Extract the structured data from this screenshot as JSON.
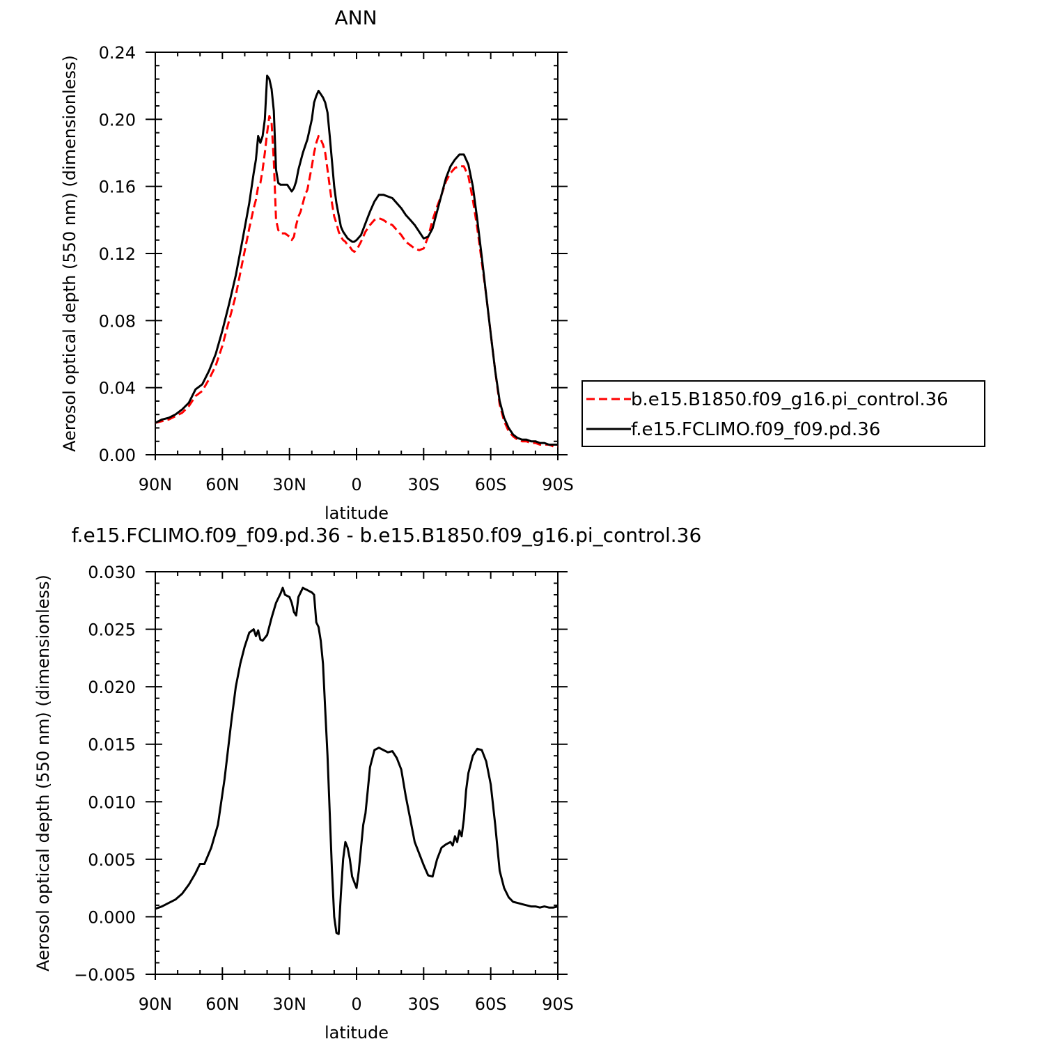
{
  "chart_data": [
    {
      "type": "line",
      "title": "ANN",
      "xlabel": "latitude",
      "ylabel": "Aerosol optical depth (550 nm) (dimensionless)",
      "xlim": [
        90,
        -90
      ],
      "ylim": [
        0.0,
        0.24
      ],
      "x_ticks": [
        90,
        60,
        30,
        0,
        -30,
        -60,
        -90
      ],
      "x_tick_labels": [
        "90N",
        "60N",
        "30N",
        "0",
        "30S",
        "60S",
        "90S"
      ],
      "y_ticks": [
        0.0,
        0.04,
        0.08,
        0.12,
        0.16,
        0.2,
        0.24
      ],
      "y_tick_labels": [
        "0.00",
        "0.04",
        "0.08",
        "0.12",
        "0.16",
        "0.20",
        "0.24"
      ],
      "grid": false,
      "legend_position": "right",
      "series": [
        {
          "name": "b.e15.B1850.f09_g16.pi_control.36",
          "color": "#ff0000",
          "style": "dashed",
          "x": [
            90,
            87,
            84,
            81,
            78,
            75,
            72,
            69,
            66,
            63,
            60,
            57,
            54,
            51,
            48,
            46,
            45,
            44,
            43,
            42,
            41,
            40,
            39,
            38,
            37,
            36,
            35,
            34,
            33,
            32,
            31,
            30,
            29,
            28,
            27,
            26,
            25,
            24,
            23,
            22,
            21,
            20,
            19,
            18,
            17,
            16,
            15,
            14,
            13,
            12,
            11,
            10,
            9,
            8,
            7,
            6,
            5,
            4,
            3,
            2,
            1,
            0,
            -2,
            -4,
            -6,
            -8,
            -10,
            -12,
            -14,
            -16,
            -18,
            -20,
            -22,
            -24,
            -26,
            -28,
            -30,
            -32,
            -34,
            -36,
            -38,
            -40,
            -42,
            -44,
            -46,
            -48,
            -50,
            -52,
            -54,
            -56,
            -58,
            -60,
            -62,
            -64,
            -66,
            -68,
            -70,
            -72,
            -74,
            -76,
            -78,
            -80,
            -82,
            -84,
            -86,
            -88,
            -90
          ],
          "y": [
            0.019,
            0.02,
            0.021,
            0.023,
            0.025,
            0.029,
            0.035,
            0.038,
            0.045,
            0.053,
            0.065,
            0.08,
            0.095,
            0.115,
            0.135,
            0.147,
            0.152,
            0.16,
            0.162,
            0.17,
            0.18,
            0.192,
            0.202,
            0.198,
            0.175,
            0.14,
            0.134,
            0.132,
            0.132,
            0.132,
            0.131,
            0.13,
            0.128,
            0.13,
            0.137,
            0.142,
            0.145,
            0.15,
            0.155,
            0.158,
            0.165,
            0.172,
            0.18,
            0.186,
            0.19,
            0.188,
            0.185,
            0.18,
            0.17,
            0.16,
            0.15,
            0.142,
            0.138,
            0.133,
            0.13,
            0.128,
            0.127,
            0.125,
            0.124,
            0.122,
            0.121,
            0.122,
            0.127,
            0.133,
            0.137,
            0.14,
            0.141,
            0.14,
            0.138,
            0.137,
            0.134,
            0.131,
            0.127,
            0.125,
            0.123,
            0.122,
            0.123,
            0.13,
            0.14,
            0.148,
            0.155,
            0.163,
            0.168,
            0.171,
            0.172,
            0.172,
            0.166,
            0.152,
            0.135,
            0.115,
            0.095,
            0.072,
            0.05,
            0.03,
            0.02,
            0.014,
            0.011,
            0.009,
            0.008,
            0.008,
            0.007,
            0.007,
            0.006,
            0.006,
            0.006,
            0.005,
            0.005
          ]
        },
        {
          "name": "f.e15.FCLIMO.f09_f09.pd.36",
          "color": "#000000",
          "style": "solid",
          "x": [
            90,
            87,
            84,
            81,
            78,
            75,
            72,
            69,
            66,
            63,
            60,
            57,
            54,
            51,
            48,
            46,
            45,
            44,
            43,
            42,
            41,
            40,
            39,
            38,
            37,
            36,
            35,
            34,
            33,
            32,
            31,
            30,
            29,
            28,
            27,
            26,
            25,
            24,
            23,
            22,
            21,
            20,
            19,
            18,
            17,
            16,
            15,
            14,
            13,
            12,
            11,
            10,
            9,
            8,
            7,
            6,
            5,
            4,
            3,
            2,
            1,
            0,
            -2,
            -4,
            -6,
            -8,
            -10,
            -12,
            -14,
            -16,
            -18,
            -20,
            -22,
            -24,
            -26,
            -28,
            -30,
            -32,
            -34,
            -36,
            -38,
            -40,
            -42,
            -44,
            -46,
            -48,
            -50,
            -52,
            -54,
            -56,
            -58,
            -60,
            -62,
            -64,
            -66,
            -68,
            -70,
            -72,
            -74,
            -76,
            -78,
            -80,
            -82,
            -84,
            -86,
            -88,
            -90
          ],
          "y": [
            0.019,
            0.021,
            0.022,
            0.024,
            0.027,
            0.031,
            0.039,
            0.042,
            0.05,
            0.06,
            0.074,
            0.09,
            0.107,
            0.128,
            0.15,
            0.168,
            0.176,
            0.19,
            0.186,
            0.19,
            0.2,
            0.226,
            0.224,
            0.218,
            0.205,
            0.17,
            0.162,
            0.161,
            0.161,
            0.161,
            0.161,
            0.159,
            0.157,
            0.159,
            0.163,
            0.17,
            0.175,
            0.18,
            0.184,
            0.188,
            0.194,
            0.2,
            0.21,
            0.214,
            0.217,
            0.215,
            0.213,
            0.21,
            0.204,
            0.19,
            0.175,
            0.16,
            0.15,
            0.143,
            0.136,
            0.133,
            0.131,
            0.129,
            0.128,
            0.127,
            0.127,
            0.128,
            0.131,
            0.138,
            0.145,
            0.151,
            0.155,
            0.155,
            0.154,
            0.153,
            0.15,
            0.147,
            0.143,
            0.14,
            0.137,
            0.133,
            0.129,
            0.13,
            0.135,
            0.145,
            0.155,
            0.165,
            0.172,
            0.176,
            0.179,
            0.179,
            0.173,
            0.16,
            0.14,
            0.118,
            0.095,
            0.072,
            0.05,
            0.032,
            0.022,
            0.016,
            0.012,
            0.01,
            0.009,
            0.009,
            0.008,
            0.008,
            0.007,
            0.007,
            0.006,
            0.006,
            0.006
          ]
        }
      ]
    },
    {
      "type": "line",
      "title": "f.e15.FCLIMO.f09_f09.pd.36 - b.e15.B1850.f09_g16.pi_control.36",
      "xlabel": "latitude",
      "ylabel": "Aerosol optical depth (550 nm) (dimensionless)",
      "xlim": [
        90,
        -90
      ],
      "ylim": [
        -0.005,
        0.03
      ],
      "x_ticks": [
        90,
        60,
        30,
        0,
        -30,
        -60,
        -90
      ],
      "x_tick_labels": [
        "90N",
        "60N",
        "30N",
        "0",
        "30S",
        "60S",
        "90S"
      ],
      "y_ticks": [
        -0.005,
        0.0,
        0.005,
        0.01,
        0.015,
        0.02,
        0.025,
        0.03
      ],
      "y_tick_labels": [
        "−0.005",
        "0.000",
        "0.005",
        "0.010",
        "0.015",
        "0.020",
        "0.025",
        "0.030"
      ],
      "grid": false,
      "series": [
        {
          "color": "#000000",
          "style": "solid",
          "x": [
            90,
            87,
            84,
            81,
            78,
            75,
            72,
            70,
            68,
            65,
            62,
            59,
            56,
            54,
            52,
            50,
            48,
            46,
            45,
            44,
            43,
            42,
            40,
            38,
            36,
            34,
            33,
            32,
            31,
            30,
            29,
            28,
            27,
            26,
            25,
            24,
            23,
            22,
            21,
            20,
            19,
            18,
            17,
            16,
            15,
            14,
            13,
            12,
            11,
            10,
            9,
            8,
            7,
            6,
            5,
            4,
            3,
            2,
            1,
            0,
            -1,
            -2,
            -3,
            -4,
            -5,
            -6,
            -8,
            -10,
            -12,
            -14,
            -16,
            -18,
            -20,
            -22,
            -24,
            -26,
            -28,
            -30,
            -32,
            -34,
            -36,
            -38,
            -40,
            -42,
            -43,
            -44,
            -45,
            -46,
            -47,
            -48,
            -49,
            -50,
            -52,
            -54,
            -56,
            -58,
            -60,
            -62,
            -64,
            -66,
            -68,
            -70,
            -72,
            -74,
            -76,
            -78,
            -80,
            -82,
            -84,
            -86,
            -88,
            -90
          ],
          "y": [
            0.0007,
            0.0009,
            0.0012,
            0.0015,
            0.002,
            0.0028,
            0.0038,
            0.0046,
            0.0046,
            0.006,
            0.008,
            0.012,
            0.017,
            0.02,
            0.022,
            0.0235,
            0.0247,
            0.025,
            0.0244,
            0.0249,
            0.0241,
            0.024,
            0.0245,
            0.026,
            0.0273,
            0.0281,
            0.0286,
            0.028,
            0.0279,
            0.0278,
            0.0273,
            0.0265,
            0.0262,
            0.0278,
            0.0282,
            0.0286,
            0.0285,
            0.0284,
            0.0283,
            0.0282,
            0.028,
            0.0256,
            0.0252,
            0.024,
            0.022,
            0.018,
            0.014,
            0.009,
            0.004,
            0.0,
            -0.0014,
            -0.0015,
            0.002,
            0.005,
            0.0065,
            0.006,
            0.005,
            0.0035,
            0.003,
            0.0025,
            0.004,
            0.006,
            0.008,
            0.009,
            0.011,
            0.013,
            0.0145,
            0.0147,
            0.0145,
            0.0143,
            0.0144,
            0.0138,
            0.0128,
            0.0105,
            0.0085,
            0.0065,
            0.0055,
            0.0045,
            0.0036,
            0.0035,
            0.005,
            0.006,
            0.0063,
            0.0065,
            0.0062,
            0.007,
            0.0065,
            0.0075,
            0.007,
            0.0085,
            0.011,
            0.0125,
            0.014,
            0.0146,
            0.0145,
            0.0135,
            0.0115,
            0.008,
            0.004,
            0.0025,
            0.0017,
            0.0013,
            0.0012,
            0.0011,
            0.001,
            0.0009,
            0.0009,
            0.0008,
            0.0009,
            0.0008,
            0.0008,
            0.0009
          ]
        }
      ]
    }
  ]
}
